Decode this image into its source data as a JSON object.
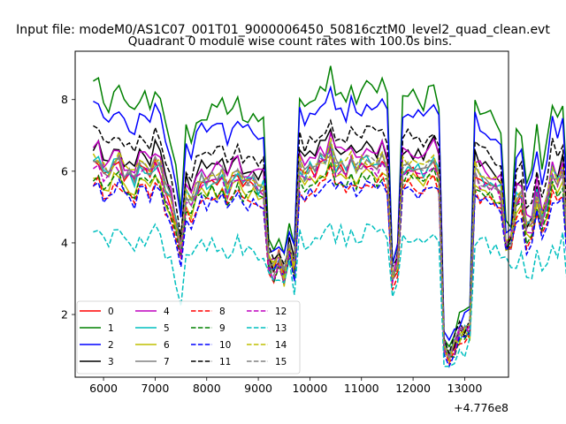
{
  "chart_data": {
    "type": "line",
    "suptitle": "Input file: modeM0/AS1C07_001T01_9000006450_50816cztM0_level2_quad_clean.evt",
    "title": "Quadrant 0 module wise count rates with 100.0s bins.",
    "xlabel": "",
    "ylabel": "",
    "x_offset_label": "+4.776e8",
    "xlim": [
      5450,
      13850
    ],
    "ylim": [
      0.25,
      9.35
    ],
    "xticks": [
      6000,
      7000,
      8000,
      9000,
      10000,
      11000,
      12000,
      13000
    ],
    "yticks": [
      2,
      4,
      6,
      8
    ],
    "legend_position": "lower-left",
    "x_start": 5800,
    "x_step": 100,
    "segment_breaks": [
      {
        "index": 34,
        "value": 3.5
      },
      {
        "index": 35,
        "value": 3.2
      },
      {
        "index": 36,
        "value": 3.6
      },
      {
        "index": 37,
        "value": 3.1
      },
      {
        "index": 38,
        "value": 3.8
      },
      {
        "index": 39,
        "value": 3.3
      },
      {
        "index": 58,
        "value": 3.0
      },
      {
        "index": 59,
        "value": 3.4
      },
      {
        "index": 68,
        "value": 1.0
      },
      {
        "index": 69,
        "value": 0.8
      },
      {
        "index": 70,
        "value": 1.1
      },
      {
        "index": 71,
        "value": 1.4
      },
      {
        "index": 72,
        "value": 1.5
      },
      {
        "index": 73,
        "value": 1.6
      },
      {
        "index": 80,
        "value": 3.9
      },
      {
        "index": 81,
        "value": 4.0
      }
    ],
    "base_profile": [
      6.25,
      6.25,
      5.9,
      5.8,
      6.1,
      6.2,
      5.85,
      5.8,
      5.7,
      6.05,
      6.0,
      5.9,
      6.2,
      6.0,
      5.4,
      5.1,
      4.5,
      3.75,
      5.35,
      5.1,
      5.5,
      5.7,
      5.6,
      5.8,
      5.7,
      5.9,
      5.5,
      5.75,
      5.9,
      5.6,
      5.65,
      5.75,
      5.5,
      5.55,
      3.5,
      3.2,
      3.6,
      3.1,
      3.8,
      3.3,
      6.1,
      5.8,
      6.0,
      5.9,
      6.25,
      6.2,
      6.6,
      6.1,
      6.15,
      6.0,
      6.3,
      6.0,
      6.15,
      6.2,
      6.2,
      6.1,
      6.3,
      6.0,
      3.0,
      3.4,
      6.05,
      6.15,
      6.05,
      6.0,
      5.9,
      6.2,
      6.3,
      5.9,
      1.0,
      0.8,
      1.1,
      1.4,
      1.5,
      1.6,
      6.0,
      5.75,
      5.7,
      5.6,
      5.55,
      5.4,
      3.9,
      4.0,
      5.2,
      5.3,
      4.3,
      4.5,
      5.3,
      4.6,
      5.1,
      5.9,
      5.5,
      5.9,
      3.85
    ],
    "series": [
      {
        "name": "0",
        "color": "#ff0000",
        "dash": "solid",
        "offset": 0.0,
        "scale": 1.0,
        "jitter": 0.18
      },
      {
        "name": "1",
        "color": "#008000",
        "dash": "solid",
        "offset": 2.05,
        "scale": 1.35,
        "jitter": 0.22
      },
      {
        "name": "2",
        "color": "#0000ff",
        "dash": "solid",
        "offset": 1.55,
        "scale": 1.25,
        "jitter": 0.2
      },
      {
        "name": "3",
        "color": "#000000",
        "dash": "solid",
        "offset": 0.45,
        "scale": 1.1,
        "jitter": 0.2
      },
      {
        "name": "4",
        "color": "#bf00bf",
        "dash": "solid",
        "offset": 0.4,
        "scale": 1.05,
        "jitter": 0.22
      },
      {
        "name": "5",
        "color": "#00bfbf",
        "dash": "solid",
        "offset": 0.05,
        "scale": 1.0,
        "jitter": 0.22
      },
      {
        "name": "6",
        "color": "#bfbf00",
        "dash": "solid",
        "offset": -0.3,
        "scale": 0.95,
        "jitter": 0.2
      },
      {
        "name": "7",
        "color": "#808080",
        "dash": "solid",
        "offset": 0.1,
        "scale": 1.0,
        "jitter": 0.2
      },
      {
        "name": "8",
        "color": "#ff0000",
        "dash": "dashed",
        "offset": -0.5,
        "scale": 0.92,
        "jitter": 0.18
      },
      {
        "name": "9",
        "color": "#008000",
        "dash": "dashed",
        "offset": -0.35,
        "scale": 0.95,
        "jitter": 0.18
      },
      {
        "name": "10",
        "color": "#0000ff",
        "dash": "dashed",
        "offset": -0.6,
        "scale": 0.92,
        "jitter": 0.2
      },
      {
        "name": "11",
        "color": "#000000",
        "dash": "dashed",
        "offset": 0.85,
        "scale": 1.12,
        "jitter": 0.2
      },
      {
        "name": "12",
        "color": "#bf00bf",
        "dash": "dashed",
        "offset": -0.05,
        "scale": 1.0,
        "jitter": 0.2
      },
      {
        "name": "13",
        "color": "#00bfbf",
        "dash": "dashed",
        "offset": -1.85,
        "scale": 0.78,
        "jitter": 0.25
      },
      {
        "name": "14",
        "color": "#bfbf00",
        "dash": "dashed",
        "offset": 0.15,
        "scale": 1.0,
        "jitter": 0.2
      },
      {
        "name": "15",
        "color": "#808080",
        "dash": "dashed",
        "offset": 0.05,
        "scale": 1.0,
        "jitter": 0.2
      }
    ]
  }
}
